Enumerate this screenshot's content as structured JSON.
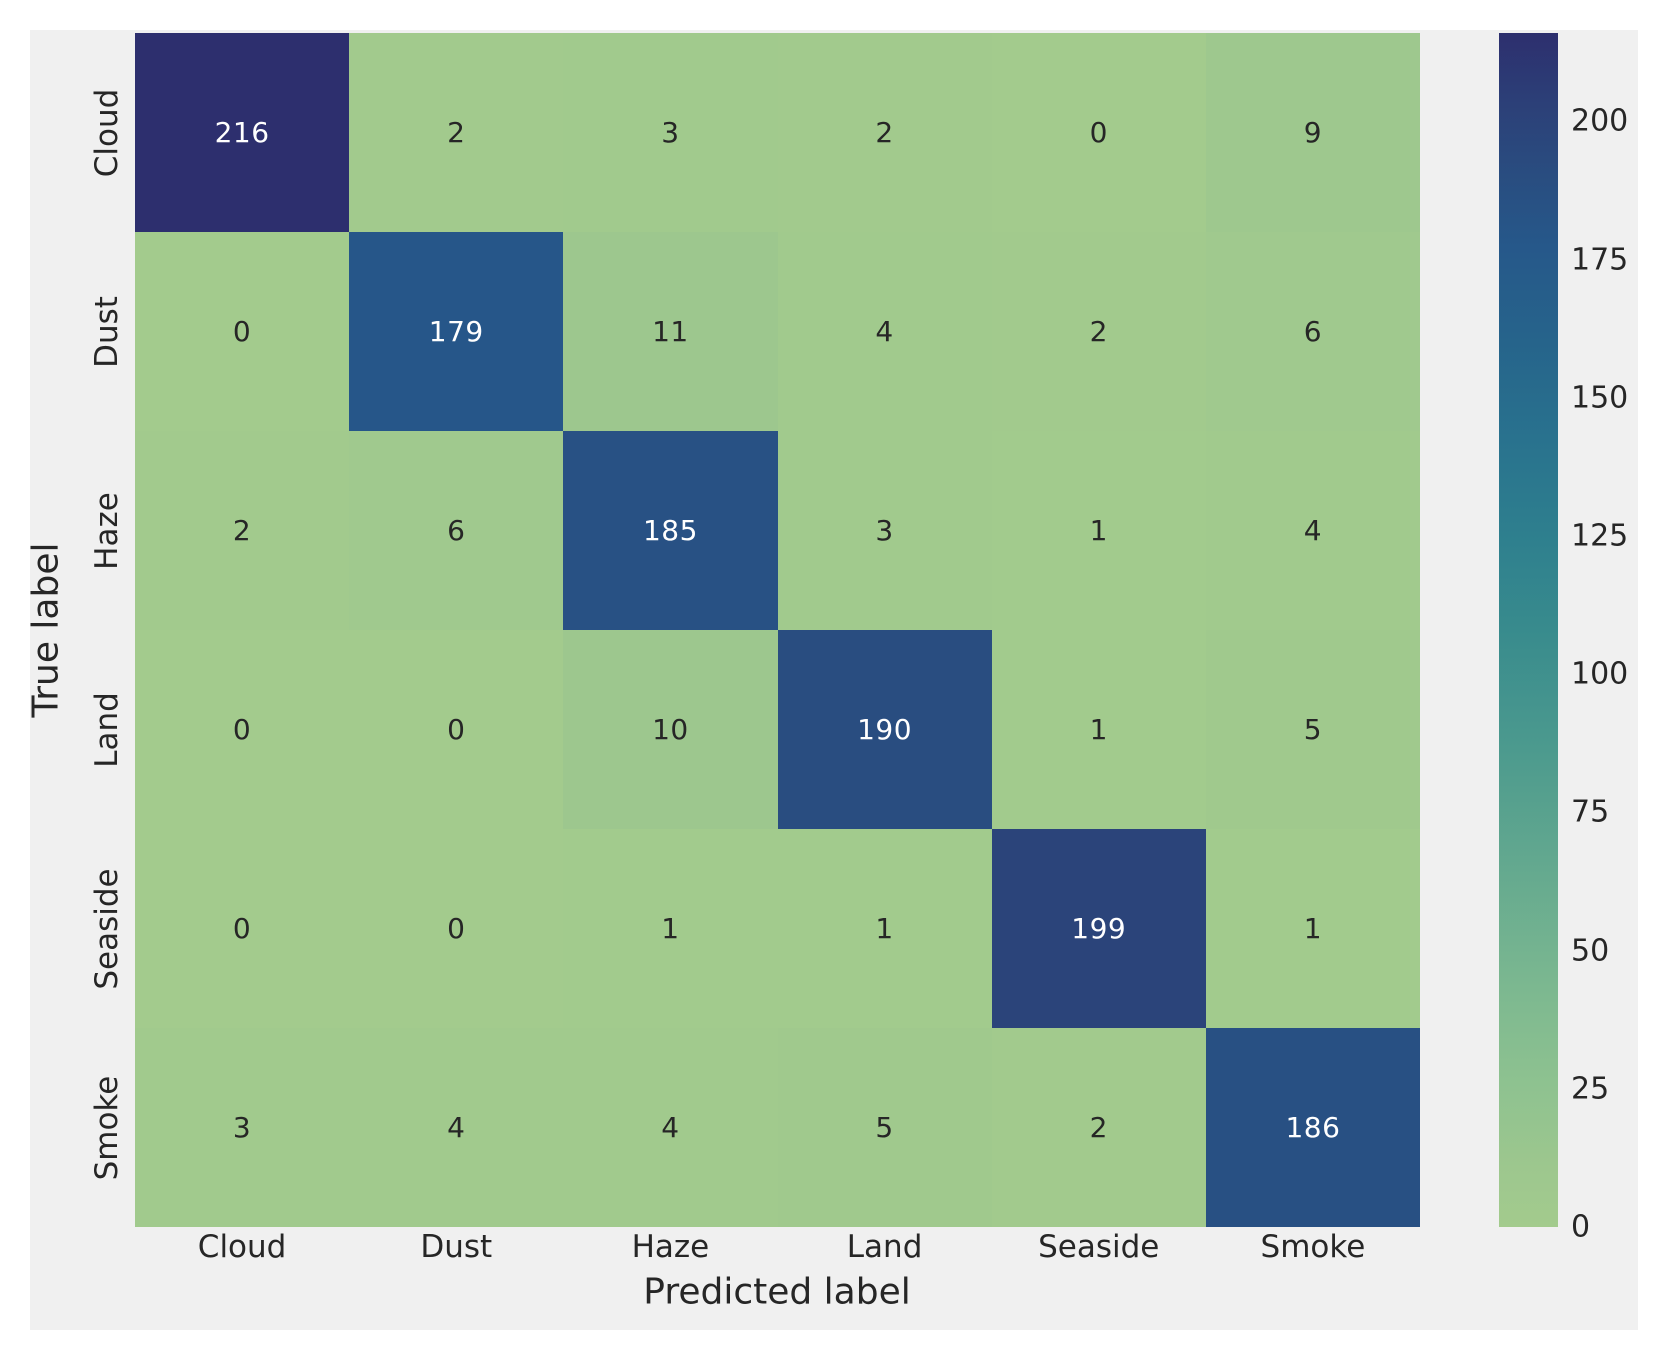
{
  "figure": {
    "page_background": "#ffffff",
    "figure_background": "#f0f0f0"
  },
  "chart_data": {
    "type": "heatmap",
    "subtype": "confusion-matrix",
    "title": "",
    "xlabel": "Predicted label",
    "ylabel": "True label",
    "categories": [
      "Cloud",
      "Dust",
      "Haze",
      "Land",
      "Seaside",
      "Smoke"
    ],
    "matrix": [
      [
        216,
        2,
        3,
        2,
        0,
        9
      ],
      [
        0,
        179,
        11,
        4,
        2,
        6
      ],
      [
        2,
        6,
        185,
        3,
        1,
        4
      ],
      [
        0,
        0,
        10,
        190,
        1,
        5
      ],
      [
        0,
        0,
        1,
        1,
        199,
        1
      ],
      [
        3,
        4,
        4,
        5,
        2,
        186
      ]
    ],
    "vmin": 0,
    "vmax": 216,
    "colorbar_ticks": [
      0,
      25,
      50,
      75,
      100,
      125,
      150,
      175,
      200
    ],
    "legend_position": "right",
    "grid": false,
    "colormap_name": "crest",
    "colormap_stops": [
      {
        "t": 0.0,
        "color": "#a3cb8d"
      },
      {
        "t": 0.05,
        "color": "#9dc78e"
      },
      {
        "t": 0.12,
        "color": "#8ec290"
      },
      {
        "t": 0.2,
        "color": "#7cb890"
      },
      {
        "t": 0.3,
        "color": "#64a98f"
      },
      {
        "t": 0.4,
        "color": "#4c9a8e"
      },
      {
        "t": 0.5,
        "color": "#388b8d"
      },
      {
        "t": 0.58,
        "color": "#2e7f8e"
      },
      {
        "t": 0.66,
        "color": "#29728e"
      },
      {
        "t": 0.74,
        "color": "#26648b"
      },
      {
        "t": 0.82,
        "color": "#26588a"
      },
      {
        "t": 0.88,
        "color": "#294d80"
      },
      {
        "t": 0.94,
        "color": "#2c4078"
      },
      {
        "t": 1.0,
        "color": "#2d2f6e"
      }
    ],
    "annot_text_dark": "#262626",
    "annot_text_light": "#ffffff",
    "annot_light_threshold": 0.5
  }
}
